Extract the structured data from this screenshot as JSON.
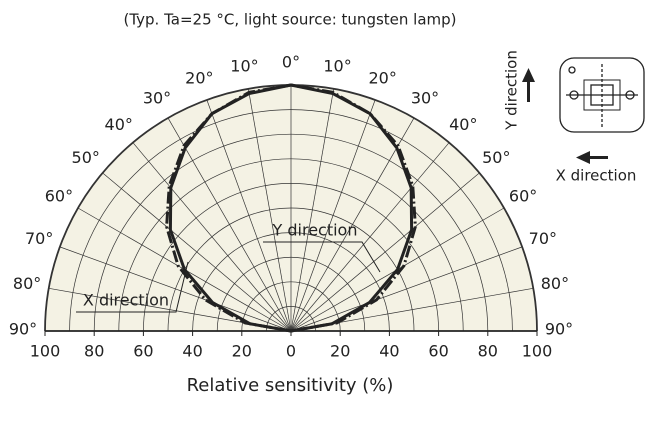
{
  "chart_data": {
    "type": "polar",
    "subtitle": "(Typ. Ta=25 °C, light source: tungsten lamp)",
    "xlabel": "Relative sensitivity (%)",
    "rlim": [
      0,
      100
    ],
    "xlim": [
      -100,
      100
    ],
    "xticks": [
      {
        "value": -100,
        "label": "100"
      },
      {
        "value": -80,
        "label": "80"
      },
      {
        "value": -60,
        "label": "60"
      },
      {
        "value": -40,
        "label": "40"
      },
      {
        "value": -20,
        "label": "20"
      },
      0,
      20,
      40,
      60,
      80,
      100
    ],
    "rgrid": [
      10,
      20,
      30,
      40,
      50,
      60,
      70,
      80,
      90,
      100
    ],
    "angle_ticks": [
      {
        "value": -90,
        "label": "90°"
      },
      {
        "value": -80,
        "label": "80°"
      },
      {
        "value": -70,
        "label": "70°"
      },
      {
        "value": -60,
        "label": "60°"
      },
      {
        "value": -50,
        "label": "50°"
      },
      {
        "value": -40,
        "label": "40°"
      },
      {
        "value": -30,
        "label": "30°"
      },
      {
        "value": -20,
        "label": "20°"
      },
      {
        "value": -10,
        "label": "10°"
      },
      {
        "value": 0,
        "label": "0°"
      },
      {
        "value": 10,
        "label": "10°"
      },
      {
        "value": 20,
        "label": "20°"
      },
      {
        "value": 30,
        "label": "30°"
      },
      {
        "value": 40,
        "label": "40°"
      },
      {
        "value": 50,
        "label": "50°"
      },
      {
        "value": 60,
        "label": "60°"
      },
      {
        "value": 70,
        "label": "70°"
      },
      {
        "value": 80,
        "label": "80°"
      },
      {
        "value": 90,
        "label": "90°"
      }
    ],
    "x": [
      -90,
      -80,
      -70,
      -60,
      -50,
      -40,
      -30,
      -20,
      -10,
      0,
      10,
      20,
      30,
      40,
      50,
      60,
      70,
      80,
      90
    ],
    "series": [
      {
        "name": "Y direction",
        "color": "#222222",
        "linestyle": "solid",
        "values": [
          0,
          17,
          34,
          50,
          64,
          76,
          86,
          94,
          98,
          100,
          98,
          94,
          86,
          76,
          64,
          50,
          34,
          17,
          0
        ]
      },
      {
        "name": "X direction",
        "color": "#222222",
        "linestyle": "dashdot",
        "values": [
          0,
          19,
          37,
          53,
          66,
          77,
          87,
          94,
          98.5,
          100,
          98.5,
          94,
          87,
          77,
          66,
          53,
          37,
          19,
          0
        ]
      }
    ],
    "inset": {
      "y_label": "Y direction",
      "x_label": "X direction"
    }
  }
}
